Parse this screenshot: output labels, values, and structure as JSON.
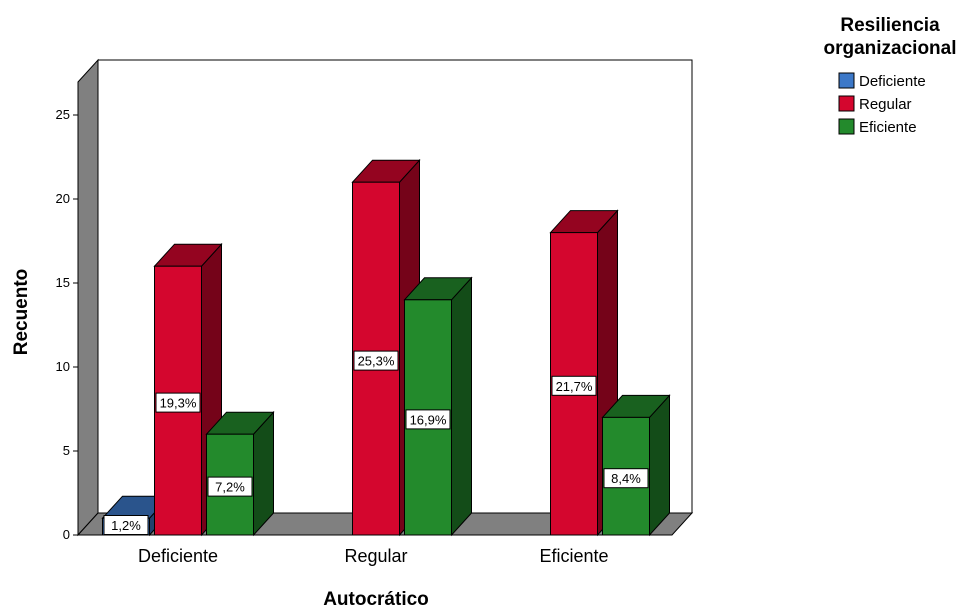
{
  "chart_data": {
    "type": "bar",
    "title": "",
    "xlabel": "Autocrático",
    "ylabel": "Recuento",
    "ylim": [
      0,
      25
    ],
    "yticks": [
      0,
      5,
      10,
      15,
      20,
      25
    ],
    "categories": [
      "Deficiente",
      "Regular",
      "Eficiente"
    ],
    "legend": {
      "title_line1": "Resiliencia",
      "title_line2": "organizacional",
      "position": "top-right"
    },
    "series": [
      {
        "name": "Deficiente",
        "color": "#3c78c8",
        "values": [
          1,
          null,
          null
        ],
        "labels": [
          "1,2%",
          "",
          ""
        ]
      },
      {
        "name": "Regular",
        "color": "#d4062e",
        "values": [
          16,
          21,
          18
        ],
        "labels": [
          "19,3%",
          "25,3%",
          "21,7%"
        ]
      },
      {
        "name": "Eficiente",
        "color": "#238a2c",
        "values": [
          6,
          14,
          7
        ],
        "labels": [
          "7,2%",
          "16,9%",
          "8,4%"
        ]
      }
    ],
    "grid": false,
    "style": "3d"
  }
}
